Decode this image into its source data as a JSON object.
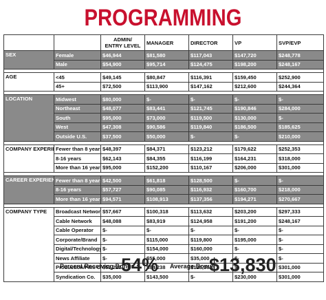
{
  "title": "PROGRAMMING",
  "columns": [
    "",
    "",
    "ADMIN/\nENTRY LEVEL",
    "MANAGER",
    "DIRECTOR",
    "VP",
    "SVP/EVP"
  ],
  "sections": [
    {
      "label": "SEX",
      "shade": true,
      "rows": [
        {
          "label": "Female",
          "values": [
            "$46,944",
            "$81,580",
            "$117,043",
            "$147,720",
            "$248,778"
          ]
        },
        {
          "label": "Male",
          "values": [
            "$54,900",
            "$95,714",
            "$124,475",
            "$198,200",
            "$248,167"
          ]
        }
      ]
    },
    {
      "label": "AGE",
      "shade": false,
      "rows": [
        {
          "label": "<45",
          "values": [
            "$49,145",
            "$80,847",
            "$116,391",
            "$159,450",
            "$252,900"
          ]
        },
        {
          "label": "45+",
          "values": [
            "$72,500",
            "$113,900",
            "$147,162",
            "$212,600",
            "$244,364"
          ]
        }
      ]
    },
    {
      "label": "LOCATION",
      "shade": true,
      "rows": [
        {
          "label": "Midwest",
          "values": [
            "$80,000",
            "$-",
            "$-",
            "$-",
            "$-"
          ]
        },
        {
          "label": "Northeast",
          "values": [
            "$48,077",
            "$83,441",
            "$121,745",
            "$190,846",
            "$284,000"
          ]
        },
        {
          "label": "South",
          "values": [
            "$95,000",
            "$73,000",
            "$119,500",
            "$130,000",
            "$-"
          ]
        },
        {
          "label": "West",
          "values": [
            "$47,308",
            "$90,586",
            "$119,840",
            "$186,500",
            "$185,625"
          ]
        },
        {
          "label": "Outside U.S.",
          "values": [
            "$37,500",
            "$50,000",
            "$-",
            "$-",
            "$210,000"
          ]
        }
      ]
    },
    {
      "label": "COMPANY EXPERIENCE",
      "shade": false,
      "rows": [
        {
          "label": "Fewer than 8 years",
          "values": [
            "$48,397",
            "$84,371",
            "$123,212",
            "$179,622",
            "$252,353"
          ]
        },
        {
          "label": "8-16 years",
          "values": [
            "$62,143",
            "$84,355",
            "$116,199",
            "$164,231",
            "$318,000"
          ]
        },
        {
          "label": "More than 16 years",
          "values": [
            "$95,000",
            "$152,200",
            "$110,167",
            "$206,000",
            "$301,000"
          ]
        }
      ]
    },
    {
      "label": "CAREER EXPERIENCE",
      "shade": true,
      "rows": [
        {
          "label": "Fewer than 8 years",
          "values": [
            "$42,500",
            "$61,818",
            "$128,500",
            "$-",
            "$-"
          ]
        },
        {
          "label": "8-16 years",
          "values": [
            "$57,727",
            "$90,085",
            "$116,932",
            "$160,700",
            "$218,000"
          ]
        },
        {
          "label": "More than 16 years",
          "values": [
            "$94,571",
            "$108,913",
            "$137,356",
            "$194,271",
            "$270,667"
          ]
        }
      ]
    },
    {
      "label": "COMPANY TYPE",
      "shade": false,
      "rows": [
        {
          "label": "Broadcast Network",
          "values": [
            "$57,667",
            "$100,318",
            "$113,632",
            "$203,200",
            "$297,333"
          ]
        },
        {
          "label": "Cable Network",
          "values": [
            "$48,088",
            "$83,919",
            "$124,958",
            "$191,200",
            "$248,167"
          ]
        },
        {
          "label": "Cable Operator",
          "values": [
            "$-",
            "$-",
            "$-",
            "$-",
            "$-"
          ]
        },
        {
          "label": "Corporate/Brand",
          "values": [
            "$-",
            "$115,000",
            "$119,800",
            "$195,000",
            "$-"
          ]
        },
        {
          "label": "Digital/Technology",
          "values": [
            "$-",
            "$154,000",
            "$160,000",
            "$-",
            "$-"
          ]
        },
        {
          "label": "News Affiliate",
          "values": [
            "$-",
            "$55,000",
            "$35,000",
            "$-",
            "$-"
          ]
        },
        {
          "label": "Production/Film Co.",
          "values": [
            "$52,222",
            "$84,238",
            "$123,362",
            "$-",
            "$301,000"
          ]
        },
        {
          "label": "Syndication Co.",
          "values": [
            "$35,000",
            "$143,500",
            "$-",
            "$230,000",
            "$301,000"
          ]
        }
      ]
    }
  ],
  "footer": {
    "bonus_label": "Percent Receiving Bonus :",
    "bonus_value": "54%",
    "avg_label": "Average Bonus :",
    "avg_value": "$13,830"
  }
}
